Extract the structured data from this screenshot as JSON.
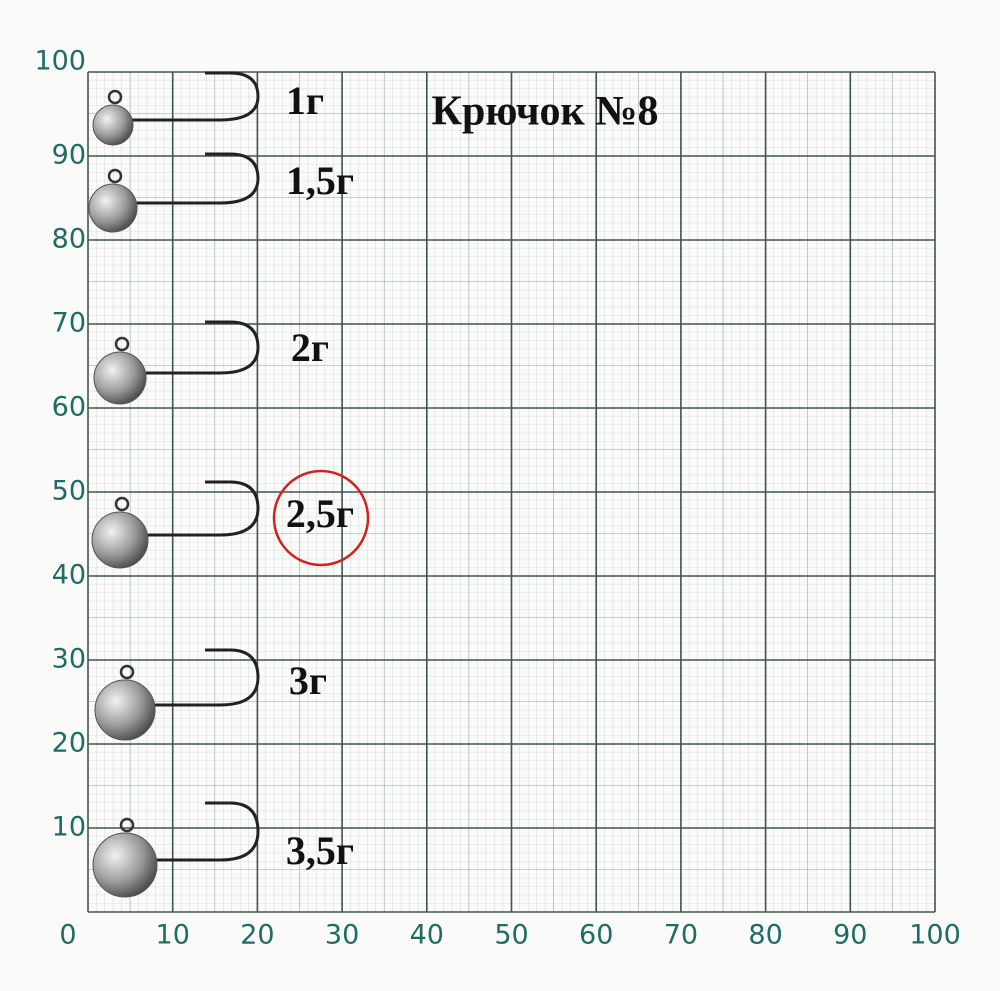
{
  "title": "Крючок №8",
  "x_ticks": [
    0,
    10,
    20,
    30,
    40,
    50,
    60,
    70,
    80,
    90,
    100
  ],
  "y_ticks": [
    10,
    20,
    30,
    40,
    50,
    60,
    70,
    80,
    90,
    100
  ],
  "jigs": [
    {
      "label": "1г"
    },
    {
      "label": "1,5г"
    },
    {
      "label": "2г"
    },
    {
      "label": "2,5г"
    },
    {
      "label": "3г"
    },
    {
      "label": "3,5г"
    }
  ]
}
